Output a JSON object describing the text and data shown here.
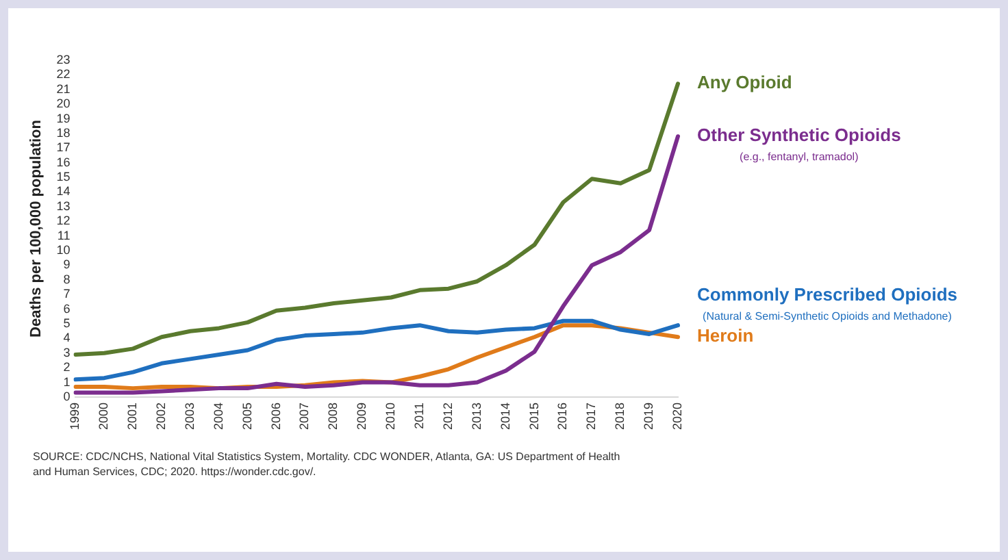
{
  "chart_data": {
    "type": "line",
    "ylabel": "Deaths per 100,000 population",
    "categories": [
      "1999",
      "2000",
      "2001",
      "2002",
      "2003",
      "2004",
      "2005",
      "2006",
      "2007",
      "2008",
      "2009",
      "2010",
      "2011",
      "2012",
      "2013",
      "2014",
      "2015",
      "2016",
      "2017",
      "2018",
      "2019",
      "2020"
    ],
    "series": [
      {
        "name": "Any Opioid",
        "color": "#5a7a2e",
        "values": [
          2.9,
          3.0,
          3.3,
          4.1,
          4.5,
          4.7,
          5.1,
          5.9,
          6.1,
          6.4,
          6.6,
          6.8,
          7.3,
          7.4,
          7.9,
          9.0,
          10.4,
          13.3,
          14.9,
          14.6,
          15.5,
          21.4
        ]
      },
      {
        "name": "Other Synthetic Opioids",
        "color": "#7b2d8e",
        "values": [
          0.3,
          0.3,
          0.3,
          0.4,
          0.5,
          0.6,
          0.6,
          0.9,
          0.7,
          0.8,
          1.0,
          1.0,
          0.8,
          0.8,
          1.0,
          1.8,
          3.1,
          6.2,
          9.0,
          9.9,
          11.4,
          17.8
        ]
      },
      {
        "name": "Commonly Prescribed Opioids",
        "color": "#1f6fbf",
        "values": [
          1.2,
          1.3,
          1.7,
          2.3,
          2.6,
          2.9,
          3.2,
          3.9,
          4.2,
          4.3,
          4.4,
          4.7,
          4.9,
          4.5,
          4.4,
          4.6,
          4.7,
          5.2,
          5.2,
          4.6,
          4.3,
          4.9
        ]
      },
      {
        "name": "Heroin",
        "color": "#e07b1a",
        "values": [
          0.7,
          0.7,
          0.6,
          0.7,
          0.7,
          0.6,
          0.7,
          0.7,
          0.8,
          1.0,
          1.1,
          1.0,
          1.4,
          1.9,
          2.7,
          3.4,
          4.1,
          4.9,
          4.9,
          4.7,
          4.4,
          4.1
        ]
      }
    ],
    "ylim": [
      0,
      23
    ],
    "yticks": [
      0,
      1,
      2,
      3,
      4,
      5,
      6,
      7,
      8,
      9,
      10,
      11,
      12,
      13,
      14,
      15,
      16,
      17,
      18,
      19,
      20,
      21,
      22,
      23
    ],
    "grid": false,
    "legend": false,
    "marker": "none",
    "line_style": "solid",
    "annotations": [
      "(e.g., fentanyl, tramadol)",
      "(Natural & Semi-Synthetic Opioids and Methadone)",
      "SOURCE: CDC/NCHS, National Vital Statistics System, Mortality. CDC WONDER, Atlanta, GA: US Department of Health and Human Services, CDC; 2020. https://wonder.cdc.gov/."
    ]
  }
}
